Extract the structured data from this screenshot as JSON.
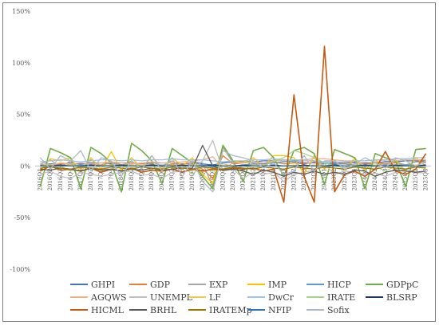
{
  "chart_data": {
    "type": "line",
    "ylim": [
      -100,
      150
    ],
    "y_ticks": [
      -100,
      -50,
      0,
      50,
      100,
      150
    ],
    "y_tick_labels": [
      "-100%",
      "-50%",
      "0%",
      "50%",
      "100%",
      "150%"
    ],
    "grid": false,
    "legend_position": "bottom",
    "x": [
      "2016Q1",
      "2016Q2",
      "2016Q3",
      "2016Q4",
      "2017Q1",
      "2017Q2",
      "2017Q3",
      "2017Q4",
      "2018Q1",
      "2018Q2",
      "2018Q3",
      "2018Q4",
      "2019Q1",
      "2019Q2",
      "2019Q3",
      "2019Q4",
      "2020Q1",
      "2020Q2",
      "2020Q3",
      "2020Q4",
      "2021Q1",
      "2021Q2",
      "2021Q3",
      "2021Q4",
      "2022Q1",
      "2022Q2",
      "2022Q3",
      "2022Q4",
      "2023Q1",
      "2023Q2",
      "2023Q3",
      "2023Q4",
      "2024Q1",
      "2024Q2",
      "2024Q3",
      "2024Q4",
      "2025Q1",
      "2025Q2",
      "2025Q3"
    ],
    "series": [
      {
        "name": "GHPI",
        "color": "#4472c4",
        "values": [
          1,
          2,
          2,
          3,
          2,
          3,
          3,
          2,
          3,
          3,
          2,
          3,
          3,
          3,
          2,
          3,
          2,
          1,
          3,
          4,
          4,
          4,
          5,
          5,
          5,
          4,
          3,
          3,
          2,
          3,
          3,
          3,
          3,
          3,
          4,
          4,
          5,
          5,
          5
        ]
      },
      {
        "name": "GDP",
        "color": "#ed7d31",
        "values": [
          -3,
          1,
          2,
          2,
          -2,
          2,
          1,
          3,
          1,
          3,
          2,
          2,
          -1,
          2,
          2,
          2,
          -3,
          -12,
          10,
          2,
          3,
          4,
          2,
          4,
          2,
          3,
          2,
          4,
          -2,
          2,
          3,
          4,
          2,
          3,
          2,
          3,
          1,
          4,
          4
        ]
      },
      {
        "name": "EXP",
        "color": "#a5a5a5",
        "values": [
          2,
          6,
          -1,
          5,
          -3,
          6,
          0,
          4,
          0,
          5,
          -2,
          4,
          0,
          5,
          -3,
          4,
          3,
          -20,
          18,
          3,
          4,
          3,
          -1,
          6,
          5,
          4,
          -3,
          5,
          0,
          2,
          -2,
          5,
          -1,
          4,
          -1,
          4,
          1,
          4,
          3
        ]
      },
      {
        "name": "IMP",
        "color": "#ffc000",
        "values": [
          -5,
          7,
          5,
          8,
          -6,
          8,
          -3,
          14,
          -4,
          8,
          -2,
          10,
          -3,
          8,
          0,
          8,
          -8,
          -17,
          20,
          5,
          3,
          8,
          0,
          10,
          10,
          8,
          -8,
          10,
          -3,
          6,
          -4,
          8,
          -4,
          6,
          -2,
          6,
          -5,
          8,
          0
        ]
      },
      {
        "name": "HICP",
        "color": "#5b9bd5",
        "values": [
          0,
          1,
          0,
          1,
          1,
          1,
          0,
          1,
          1,
          1,
          0,
          1,
          1,
          1,
          0,
          1,
          1,
          -1,
          0,
          0,
          1,
          2,
          2,
          3,
          4,
          5,
          5,
          5,
          3,
          2,
          2,
          1,
          1,
          1,
          1,
          1,
          1,
          1,
          1
        ]
      },
      {
        "name": "GDPpC",
        "color": "#70ad47",
        "values": [
          -20,
          17,
          13,
          8,
          -22,
          18,
          12,
          3,
          -25,
          22,
          15,
          5,
          -17,
          17,
          10,
          3,
          -10,
          -22,
          20,
          5,
          -15,
          15,
          18,
          8,
          -10,
          15,
          18,
          12,
          -18,
          16,
          12,
          8,
          -22,
          12,
          8,
          5,
          -20,
          16,
          17
        ]
      },
      {
        "name": "AGQWS",
        "color": "#f4b183",
        "values": [
          2,
          1,
          3,
          2,
          3,
          2,
          3,
          4,
          3,
          2,
          3,
          4,
          3,
          3,
          4,
          5,
          6,
          9,
          -3,
          3,
          3,
          4,
          3,
          5,
          5,
          6,
          6,
          7,
          7,
          6,
          5,
          5,
          5,
          6,
          5,
          5,
          6,
          6,
          6
        ]
      },
      {
        "name": "UNEMPL",
        "color": "#bfbfbf",
        "values": [
          -8,
          -5,
          -10,
          -12,
          -6,
          -8,
          -10,
          -8,
          -6,
          -5,
          -9,
          -8,
          -12,
          -6,
          -5,
          -4,
          5,
          25,
          -5,
          -3,
          -12,
          -6,
          -8,
          -6,
          -15,
          -8,
          -6,
          -4,
          2,
          -8,
          -5,
          -6,
          -8,
          -7,
          -10,
          -6,
          -3,
          -6,
          -7
        ]
      },
      {
        "name": "LF",
        "color": "#f2c94c",
        "values": [
          0,
          1,
          0,
          1,
          0,
          1,
          0,
          1,
          0,
          1,
          0,
          1,
          0,
          1,
          0,
          1,
          0,
          -3,
          2,
          0,
          0,
          1,
          0,
          1,
          0,
          1,
          0,
          1,
          0,
          1,
          0,
          1,
          0,
          1,
          0,
          1,
          0,
          1,
          0
        ]
      },
      {
        "name": "DwCr",
        "color": "#9dc3e6",
        "values": [
          4,
          5,
          6,
          5,
          4,
          5,
          6,
          6,
          5,
          6,
          5,
          6,
          6,
          7,
          6,
          6,
          6,
          5,
          4,
          5,
          5,
          6,
          6,
          7,
          6,
          6,
          5,
          5,
          4,
          4,
          4,
          5,
          5,
          6,
          6,
          7,
          7,
          8,
          8
        ]
      },
      {
        "name": "IRATE",
        "color": "#a9d18e",
        "values": [
          0,
          -2,
          0,
          -5,
          0,
          -3,
          0,
          -4,
          0,
          -2,
          0,
          -3,
          0,
          -2,
          0,
          -8,
          0,
          -5,
          0,
          -3,
          0,
          -2,
          0,
          5,
          8,
          15,
          12,
          8,
          3,
          0,
          -2,
          0,
          -3,
          0,
          -5,
          0,
          -3,
          0,
          -2
        ]
      },
      {
        "name": "BLSRP",
        "color": "#203864",
        "values": [
          0,
          0,
          1,
          0,
          0,
          1,
          0,
          0,
          1,
          0,
          0,
          1,
          0,
          0,
          1,
          0,
          0,
          1,
          0,
          0,
          1,
          0,
          0,
          1,
          0,
          0,
          1,
          0,
          0,
          1,
          0,
          0,
          1,
          0,
          0,
          1,
          0,
          0,
          1
        ]
      },
      {
        "name": "HICML",
        "color": "#c55a11",
        "values": [
          -5,
          0,
          -4,
          -3,
          -5,
          -2,
          -6,
          -3,
          -5,
          -2,
          -6,
          -4,
          -5,
          -3,
          -6,
          -3,
          -5,
          -3,
          -4,
          -2,
          -3,
          -2,
          -5,
          -3,
          -35,
          69,
          -10,
          -35,
          116,
          -25,
          -8,
          -5,
          -10,
          -3,
          14,
          -5,
          -8,
          -3,
          12
        ]
      },
      {
        "name": "BRHL",
        "color": "#595959",
        "values": [
          -3,
          -4,
          -2,
          -3,
          -5,
          -2,
          -4,
          -3,
          -5,
          -3,
          -4,
          -2,
          -4,
          -3,
          -2,
          -2,
          20,
          0,
          -4,
          -3,
          -5,
          -8,
          -4,
          -6,
          -10,
          -6,
          -8,
          -5,
          -8,
          -6,
          -8,
          -4,
          -5,
          -10,
          -6,
          -4,
          -5,
          -6,
          -5
        ]
      },
      {
        "name": "IRATEMp",
        "color": "#9e7600",
        "values": [
          -2,
          -1,
          -2,
          -3,
          -1,
          -2,
          -3,
          -1,
          -2,
          -3,
          -1,
          -2,
          -3,
          -1,
          -2,
          -3,
          -1,
          -2,
          -3,
          -1,
          -2,
          -3,
          -1,
          -2,
          -3,
          -1,
          -2,
          -3,
          -1,
          -2,
          -3,
          -1,
          -2,
          -3,
          -1,
          -2,
          -3,
          -1,
          -2
        ]
      },
      {
        "name": "NFIP",
        "color": "#2e75b6",
        "values": [
          0,
          0,
          0,
          0,
          0,
          0,
          0,
          0,
          0,
          0,
          0,
          0,
          0,
          0,
          0,
          0,
          0,
          0,
          0,
          0,
          0,
          0,
          0,
          0,
          0,
          0,
          0,
          0,
          0,
          0,
          0,
          0,
          0,
          0,
          0,
          0,
          0,
          0,
          0
        ]
      },
      {
        "name": "Sofix",
        "color": "#adb9ca",
        "values": [
          8,
          -3,
          10,
          5,
          15,
          -5,
          8,
          5,
          -10,
          5,
          -3,
          10,
          -5,
          8,
          -10,
          5,
          -15,
          -25,
          15,
          10,
          8,
          5,
          -2,
          3,
          -8,
          -5,
          10,
          -5,
          5,
          5,
          -3,
          2,
          8,
          3,
          -2,
          8,
          5,
          0,
          5
        ]
      }
    ]
  }
}
